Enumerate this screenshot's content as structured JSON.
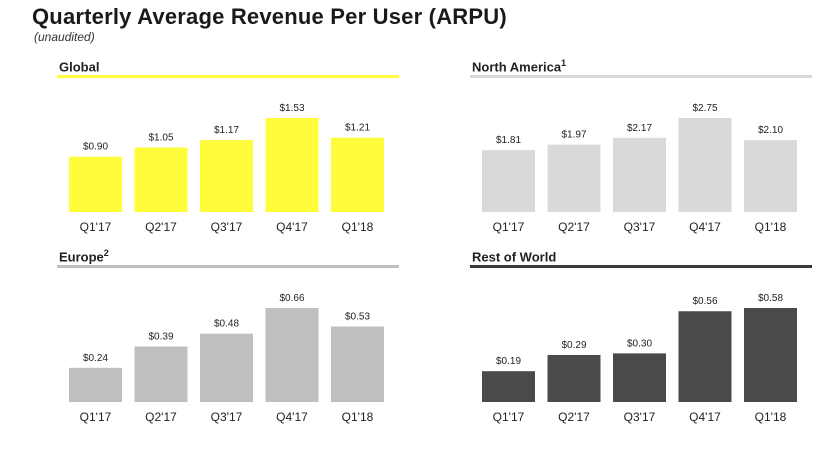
{
  "header": {
    "title": "Quarterly Average Revenue Per User (ARPU)",
    "subtitle": "(unaudited)"
  },
  "chart_data": [
    {
      "type": "bar",
      "title": "Global",
      "title_sup": "",
      "categories": [
        "Q1'17",
        "Q2'17",
        "Q3'17",
        "Q4'17",
        "Q1'18"
      ],
      "values": [
        0.9,
        1.05,
        1.17,
        1.53,
        1.21
      ],
      "value_labels": [
        "$0.90",
        "$1.05",
        "$1.17",
        "$1.53",
        "$1.21"
      ],
      "ylim": [
        0,
        1.53
      ],
      "bar_color": "#FFFC3C",
      "line_color": "#FFFC3C"
    },
    {
      "type": "bar",
      "title": "North America",
      "title_sup": "1",
      "categories": [
        "Q1'17",
        "Q2'17",
        "Q3'17",
        "Q4'17",
        "Q1'18"
      ],
      "values": [
        1.81,
        1.97,
        2.17,
        2.75,
        2.1
      ],
      "value_labels": [
        "$1.81",
        "$1.97",
        "$2.17",
        "$2.75",
        "$2.10"
      ],
      "ylim": [
        0,
        2.75
      ],
      "bar_color": "#D9D9D9",
      "line_color": "#D9D9D9"
    },
    {
      "type": "bar",
      "title": "Europe",
      "title_sup": "2",
      "categories": [
        "Q1'17",
        "Q2'17",
        "Q3'17",
        "Q4'17",
        "Q1'18"
      ],
      "values": [
        0.24,
        0.39,
        0.48,
        0.66,
        0.53
      ],
      "value_labels": [
        "$0.24",
        "$0.39",
        "$0.48",
        "$0.66",
        "$0.53"
      ],
      "ylim": [
        0,
        0.66
      ],
      "bar_color": "#BFBFBF",
      "line_color": "#BFBFBF"
    },
    {
      "type": "bar",
      "title": "Rest of World",
      "title_sup": "",
      "categories": [
        "Q1'17",
        "Q2'17",
        "Q3'17",
        "Q4'17",
        "Q1'18"
      ],
      "values": [
        0.19,
        0.29,
        0.3,
        0.56,
        0.58
      ],
      "value_labels": [
        "$0.19",
        "$0.29",
        "$0.30",
        "$0.56",
        "$0.58"
      ],
      "ylim": [
        0,
        0.58
      ],
      "bar_color": "#4A4A4A",
      "line_color": "#3A3A3A"
    }
  ]
}
